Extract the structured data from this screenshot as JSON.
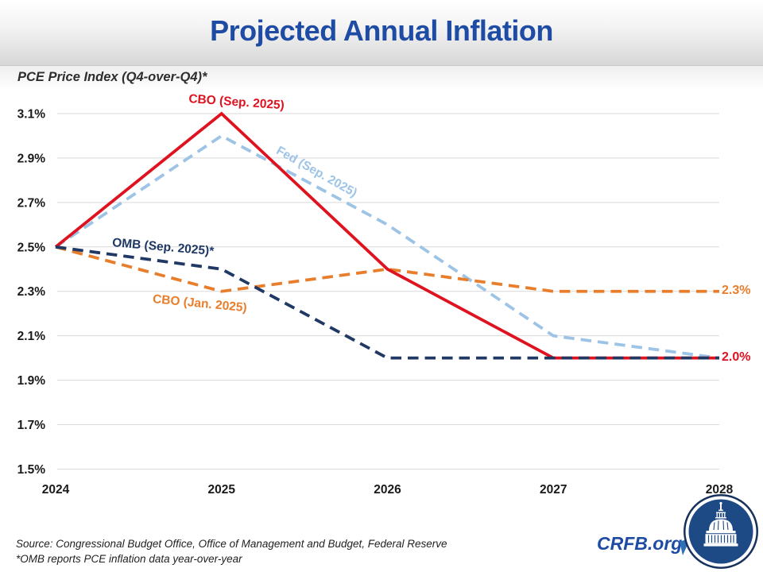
{
  "header": {
    "title": "Projected Annual Inflation",
    "subtitle": "PCE Price Index (Q4-over-Q4)*"
  },
  "chart_data": {
    "type": "line",
    "x": [
      2024,
      2025,
      2026,
      2027,
      2028
    ],
    "x_axis": {
      "labels": [
        "2024",
        "2025",
        "2026",
        "2027",
        "2028"
      ]
    },
    "y_axis": {
      "ticks": [
        "3.1%",
        "2.9%",
        "2.7%",
        "2.5%",
        "2.3%",
        "2.1%",
        "1.9%",
        "1.7%",
        "1.5%"
      ],
      "min": 1.5,
      "max": 3.1,
      "step": 0.2,
      "grid": true
    },
    "series": [
      {
        "name": "Fed (Sep. 2025)",
        "values": [
          2.5,
          3.0,
          2.6,
          2.1,
          2.0
        ],
        "color": "#9DC3E6",
        "dashed": true
      },
      {
        "name": "CBO (Jan. 2025)",
        "values": [
          2.5,
          2.3,
          2.4,
          2.3,
          2.3
        ],
        "color": "#E87E2B",
        "dashed": true
      },
      {
        "name": "CBO (Sep. 2025)",
        "values": [
          2.5,
          3.1,
          2.4,
          2.0,
          2.0
        ],
        "color": "#DF121F",
        "dashed": false
      },
      {
        "name": "OMB (Sep. 2025)*",
        "values": [
          2.5,
          2.4,
          2.0,
          2.0,
          2.0
        ],
        "color": "#1F3864",
        "dashed": true
      }
    ],
    "end_labels": [
      {
        "text": "2.3%",
        "color": "#E87E2B"
      },
      {
        "text": "2.0%",
        "color": "#DF121F"
      }
    ],
    "legend_position": "inline-labels"
  },
  "footer": {
    "source_line1": "Source: Congressional Budget Office, Office of Management and Budget, Federal Reserve",
    "source_line2": "*OMB reports PCE inflation data year-over-year",
    "site": "CRFB.org"
  },
  "colors": {
    "title_blue": "#1E4CA5",
    "gridline": "#D9D9D9",
    "logo_ring_navy": "#16325C",
    "logo_disc_blue": "#1D4A85"
  }
}
